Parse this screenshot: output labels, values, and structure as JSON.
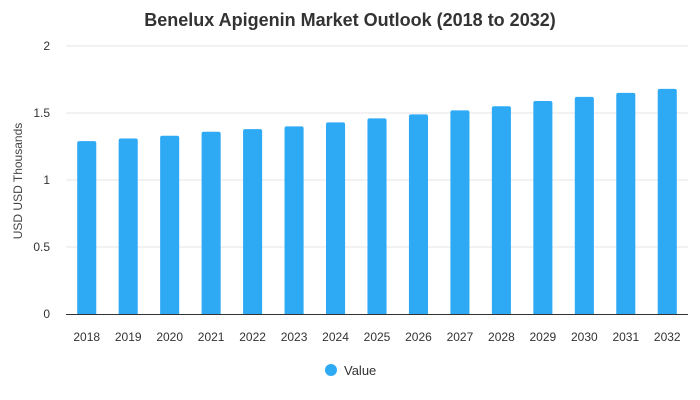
{
  "chart_data": {
    "type": "bar",
    "title": "Benelux Apigenin Market Outlook (2018 to 2032)",
    "xlabel": "",
    "ylabel": "USD USD Thousands",
    "categories": [
      "2018",
      "2019",
      "2020",
      "2021",
      "2022",
      "2023",
      "2024",
      "2025",
      "2026",
      "2027",
      "2028",
      "2029",
      "2030",
      "2031",
      "2032"
    ],
    "series": [
      {
        "name": "Value",
        "values": [
          1.29,
          1.31,
          1.33,
          1.36,
          1.38,
          1.4,
          1.43,
          1.46,
          1.49,
          1.52,
          1.55,
          1.59,
          1.62,
          1.65,
          1.68
        ]
      }
    ],
    "ylim": [
      0,
      2
    ],
    "yticks": [
      "0",
      "0.5",
      "1",
      "1.5",
      "2"
    ],
    "grid": true,
    "legend_position": "bottom-center",
    "colors": {
      "bar": "#2eaaf5",
      "grid": "#e6e6e6",
      "axis": "#333333",
      "text": "#333333"
    }
  }
}
